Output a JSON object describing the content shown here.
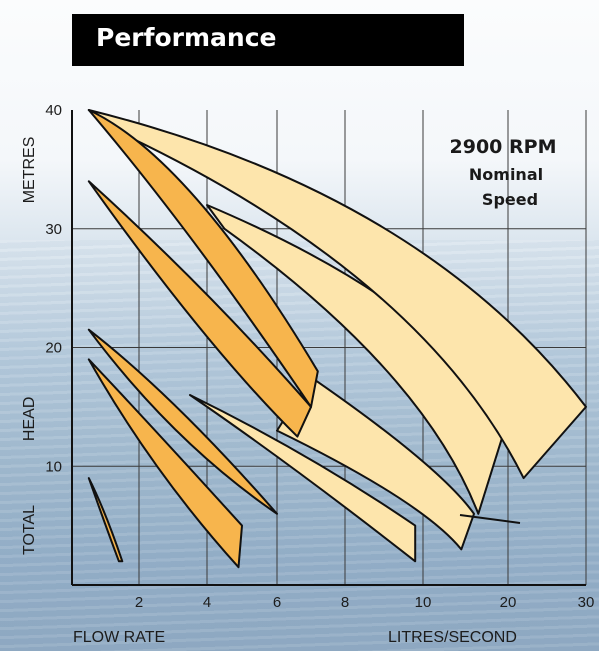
{
  "title": "Performance",
  "chart_data": {
    "type": "area",
    "ylabel": "METRES",
    "ylabel_secondary": "TOTAL HEAD",
    "xlabel": "FLOW RATE",
    "xunit": "LITRES/SECOND",
    "y_ticks": [
      "10",
      "20",
      "30",
      "40"
    ],
    "x_ticks": [
      "2",
      "4",
      "6",
      "8",
      "10",
      "20",
      "30"
    ],
    "ylim": [
      0,
      40
    ],
    "annotation": {
      "line1": "2900 RPM",
      "line2": "Nominal",
      "line3": "Speed"
    },
    "grid": true,
    "colors": {
      "low_range": "#f7b54d",
      "high_range": "#fde5ac",
      "outline": "#111111",
      "grid": "#3a3a3a"
    },
    "series": [
      {
        "range": "low",
        "upper_curve": [
          [
            0.5,
            9
          ],
          [
            1.0,
            6.2
          ],
          [
            1.5,
            2
          ]
        ],
        "lower_curve": [
          [
            0.5,
            9
          ],
          [
            1.0,
            5
          ],
          [
            1.4,
            2
          ]
        ]
      },
      {
        "range": "low",
        "upper_curve": [
          [
            0.5,
            19
          ],
          [
            2.5,
            13
          ],
          [
            5.0,
            5
          ]
        ],
        "lower_curve": [
          [
            0.5,
            19
          ],
          [
            2.4,
            9.5
          ],
          [
            4.9,
            1.5
          ]
        ]
      },
      {
        "range": "low",
        "upper_curve": [
          [
            0.5,
            21.5
          ],
          [
            3.0,
            16
          ],
          [
            6.0,
            6
          ]
        ],
        "lower_curve": [
          [
            0.5,
            21.5
          ],
          [
            3.0,
            12
          ],
          [
            6.0,
            6
          ]
        ]
      },
      {
        "range": "low",
        "upper_curve": [
          [
            0.5,
            34
          ],
          [
            4.0,
            25
          ],
          [
            7.0,
            15
          ]
        ],
        "lower_curve": [
          [
            0.5,
            34
          ],
          [
            4.0,
            20
          ],
          [
            6.6,
            12.5
          ]
        ]
      },
      {
        "range": "low",
        "upper_curve": [
          [
            0.5,
            40
          ],
          [
            3.5,
            36
          ],
          [
            7.2,
            18
          ]
        ],
        "lower_curve": [
          [
            0.5,
            40
          ],
          [
            3.5,
            30
          ],
          [
            7.0,
            15
          ]
        ]
      },
      {
        "range": "high",
        "upper_curve": [
          [
            3.5,
            16
          ],
          [
            7.0,
            11
          ],
          [
            9.8,
            5
          ]
        ],
        "lower_curve": [
          [
            3.5,
            16
          ],
          [
            6.5,
            10
          ],
          [
            9.8,
            2
          ]
        ]
      },
      {
        "range": "high",
        "upper_curve": [
          [
            7.0,
            17.5
          ],
          [
            12.0,
            10
          ],
          [
            16.0,
            6
          ]
        ],
        "lower_curve": [
          [
            6.0,
            13
          ],
          [
            10.0,
            7
          ],
          [
            14.5,
            3
          ]
        ]
      },
      {
        "range": "high",
        "upper_curve": [
          [
            4.0,
            32
          ],
          [
            11.0,
            24
          ],
          [
            20.0,
            14
          ]
        ],
        "lower_curve": [
          [
            4.5,
            30
          ],
          [
            10.0,
            18
          ],
          [
            16.5,
            6
          ]
        ]
      },
      {
        "range": "high",
        "upper_curve": [
          [
            0.5,
            40
          ],
          [
            10.0,
            33
          ],
          [
            30.0,
            15
          ]
        ],
        "lower_curve": [
          [
            1.5,
            38
          ],
          [
            10.0,
            26
          ],
          [
            22.0,
            9
          ]
        ]
      }
    ]
  }
}
